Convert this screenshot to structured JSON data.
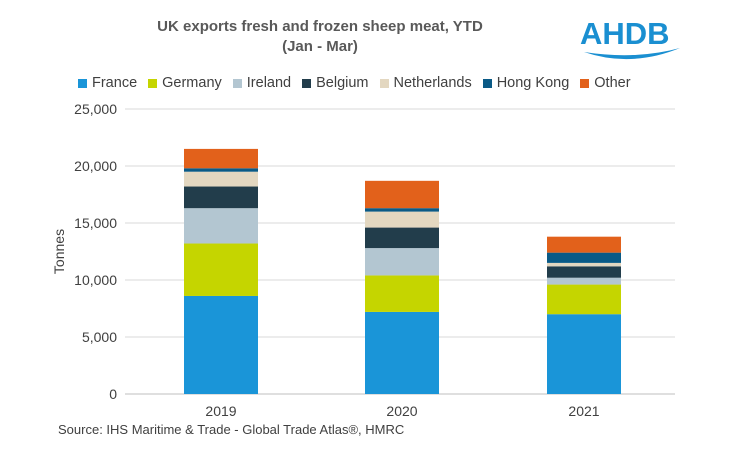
{
  "header": {
    "title_line1": "UK exports fresh and frozen sheep meat, YTD",
    "title_line2": "(Jan - Mar)",
    "logo_text": "AHDB"
  },
  "source": "Source: IHS Maritime & Trade - Global Trade Atlas®, HMRC",
  "colors": {
    "France": "#1a95d8",
    "Germany": "#c5d500",
    "Ireland": "#b3c6d1",
    "Belgium": "#223d4b",
    "Netherlands": "#e3d7c0",
    "Hong Kong": "#0a5a86",
    "Other": "#e2611b",
    "logo": "#1a8fd1"
  },
  "chart_data": {
    "type": "bar",
    "stacked": true,
    "title": "UK exports fresh and frozen sheep meat, YTD (Jan - Mar)",
    "categories": [
      "2019",
      "2020",
      "2021"
    ],
    "series": [
      {
        "name": "France",
        "values": [
          8600,
          7200,
          7000
        ]
      },
      {
        "name": "Germany",
        "values": [
          4600,
          3200,
          2600
        ]
      },
      {
        "name": "Ireland",
        "values": [
          3100,
          2400,
          600
        ]
      },
      {
        "name": "Belgium",
        "values": [
          1900,
          1800,
          1000
        ]
      },
      {
        "name": "Netherlands",
        "values": [
          1300,
          1400,
          300
        ]
      },
      {
        "name": "Hong Kong",
        "values": [
          300,
          300,
          900
        ]
      },
      {
        "name": "Other",
        "values": [
          1700,
          2400,
          1400
        ]
      }
    ],
    "xlabel": "",
    "ylabel": "Tonnes",
    "ylim": [
      0,
      25000
    ],
    "yticks": [
      0,
      5000,
      10000,
      15000,
      20000,
      25000
    ],
    "ytick_labels": [
      "0",
      "5,000",
      "10,000",
      "15,000",
      "20,000",
      "25,000"
    ],
    "grid": true,
    "legend_position": "top"
  }
}
